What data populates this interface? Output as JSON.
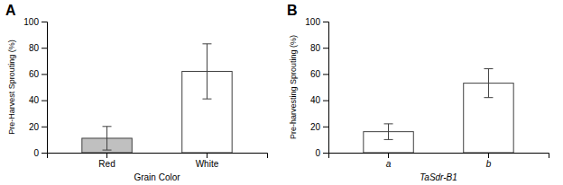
{
  "chart_data": [
    {
      "type": "bar",
      "title": "A",
      "categories": [
        "Red",
        "White"
      ],
      "values": [
        11,
        62
      ],
      "errors": [
        9,
        21
      ],
      "colors": [
        "#c0c0c0",
        "#ffffff"
      ],
      "xlabel": "Grain Color",
      "ylabel": "Pre-Harvest Sprouting (%)",
      "ylim": [
        0,
        100
      ],
      "yticks": [
        0,
        20,
        40,
        60,
        80,
        100
      ],
      "grid": false
    },
    {
      "type": "bar",
      "title": "B",
      "categories": [
        "a",
        "b"
      ],
      "values": [
        16,
        53
      ],
      "errors": [
        6,
        11
      ],
      "colors": [
        "#ffffff",
        "#ffffff"
      ],
      "xlabel": "TaSdr-B1",
      "ylabel": "Pre-harvesting Sprouting (%)",
      "ylim": [
        0,
        100
      ],
      "yticks": [
        0,
        20,
        40,
        60,
        80,
        100
      ],
      "grid": false
    }
  ]
}
